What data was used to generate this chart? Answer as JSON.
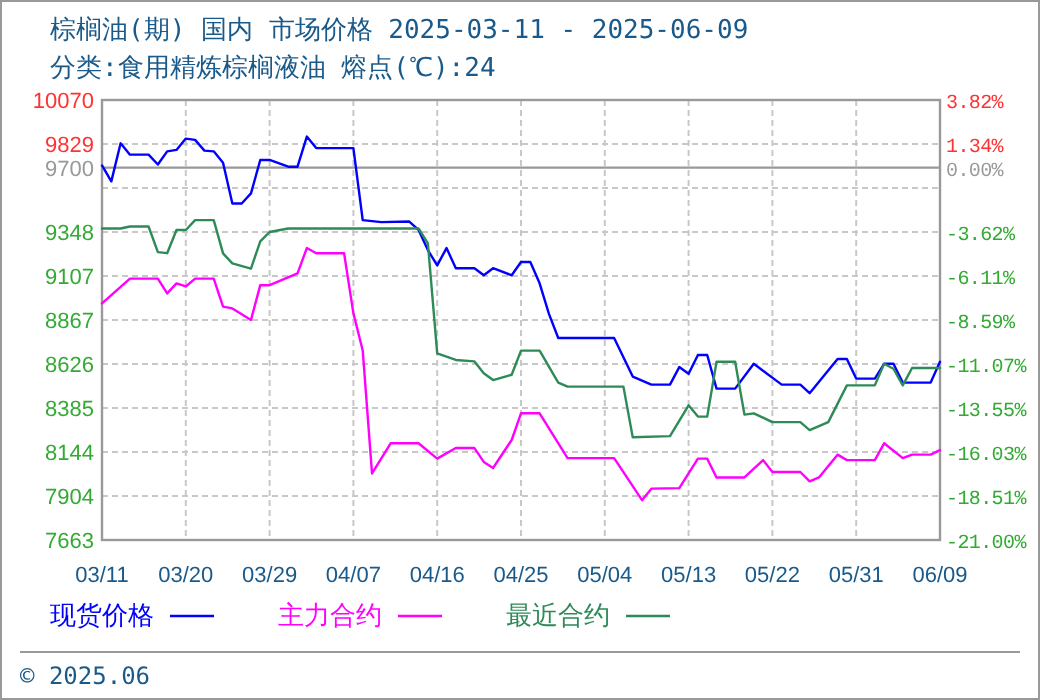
{
  "chart_data": {
    "type": "line",
    "title": "棕榈油(期) 国内 市场价格  2025-03-11 - 2025-06-09",
    "subtitle": "分类:食用精炼棕榈液油 熔点(℃):24",
    "xlim": [
      "2025-03-11",
      "2025-06-09"
    ],
    "xticks": [
      {
        "value": "2025-03-11",
        "label": "03/11"
      },
      {
        "value": "2025-03-20",
        "label": "03/20"
      },
      {
        "value": "2025-03-29",
        "label": "03/29"
      },
      {
        "value": "2025-04-07",
        "label": "04/07"
      },
      {
        "value": "2025-04-16",
        "label": "04/16"
      },
      {
        "value": "2025-04-25",
        "label": "04/25"
      },
      {
        "value": "2025-05-04",
        "label": "05/04"
      },
      {
        "value": "2025-05-13",
        "label": "05/13"
      },
      {
        "value": "2025-05-22",
        "label": "05/22"
      },
      {
        "value": "2025-05-31",
        "label": "05/31"
      },
      {
        "value": "2025-06-09",
        "label": "06/09"
      }
    ],
    "ylim": [
      7663,
      10070
    ],
    "yticks": [
      10070,
      9829,
      9700,
      {
        "value": 9588,
        "label": null
      },
      9348,
      9107,
      8867,
      8626,
      8385,
      8144,
      7904,
      7663
    ],
    "y2lim": [
      -21.0,
      3.82
    ],
    "y2ticks": [
      {
        "value": 3.82,
        "label": "3.82%"
      },
      {
        "value": 1.34,
        "label": "1.34%"
      },
      {
        "value": 0,
        "label": "0.00%"
      },
      {
        "value": -3.62,
        "label": "-3.62%"
      },
      {
        "value": -6.11,
        "label": "-6.11%"
      },
      {
        "value": -8.59,
        "label": "-8.59%"
      },
      {
        "value": -11.07,
        "label": "-11.07%"
      },
      {
        "value": -13.55,
        "label": "-13.55%"
      },
      {
        "value": -16.03,
        "label": "-16.03%"
      },
      {
        "value": -18.51,
        "label": "-18.51%"
      },
      {
        "value": -21.0,
        "label": "-21.00%"
      }
    ],
    "ref_lines": [
      {
        "axis": "y",
        "value": 9700,
        "color": "#999999"
      }
    ],
    "grid": true,
    "legend": "bottom",
    "line_style": "solid",
    "marker": "none",
    "annotations": [
      "© 2025.06"
    ],
    "series": [
      {
        "name": "现货价格",
        "color": "#0000ff",
        "x": [
          "2025-03-11",
          "2025-03-12",
          "2025-03-13",
          "2025-03-14",
          "2025-03-16",
          "2025-03-17",
          "2025-03-18",
          "2025-03-19",
          "2025-03-20",
          "2025-03-21",
          "2025-03-22",
          "2025-03-23",
          "2025-03-24",
          "2025-03-25",
          "2025-03-26",
          "2025-03-27",
          "2025-03-28",
          "2025-03-29",
          "2025-03-31",
          "2025-04-01",
          "2025-04-02",
          "2025-04-03",
          "2025-04-07",
          "2025-04-08",
          "2025-04-10",
          "2025-04-13",
          "2025-04-14",
          "2025-04-15",
          "2025-04-16",
          "2025-04-17",
          "2025-04-18",
          "2025-04-20",
          "2025-04-21",
          "2025-04-22",
          "2025-04-24",
          "2025-04-25",
          "2025-04-26",
          "2025-04-27",
          "2025-04-28",
          "2025-04-29",
          "2025-05-05",
          "2025-05-07",
          "2025-05-09",
          "2025-05-11",
          "2025-05-12",
          "2025-05-13",
          "2025-05-14",
          "2025-05-15",
          "2025-05-16",
          "2025-05-18",
          "2025-05-20",
          "2025-05-23",
          "2025-05-25",
          "2025-05-26",
          "2025-05-29",
          "2025-05-30",
          "2025-05-31",
          "2025-06-02",
          "2025-06-03",
          "2025-06-04",
          "2025-06-05",
          "2025-06-08",
          "2025-06-09"
        ],
        "values": [
          9712,
          9625,
          9833,
          9771,
          9771,
          9717,
          9789,
          9797,
          9859,
          9852,
          9793,
          9789,
          9727,
          9504,
          9504,
          9559,
          9742,
          9742,
          9705,
          9705,
          9870,
          9807,
          9807,
          9413,
          9402,
          9405,
          9359,
          9249,
          9165,
          9260,
          9150,
          9150,
          9111,
          9150,
          9111,
          9184,
          9184,
          9067,
          8900,
          8768,
          8768,
          8557,
          8513,
          8513,
          8609,
          8572,
          8675,
          8675,
          8491,
          8491,
          8627,
          8513,
          8513,
          8466,
          8653,
          8653,
          8546,
          8546,
          8627,
          8627,
          8524,
          8524,
          8638
        ]
      },
      {
        "name": "主力合约",
        "color": "#ff00ff",
        "x": [
          "2025-03-11",
          "2025-03-14",
          "2025-03-17",
          "2025-03-18",
          "2025-03-19",
          "2025-03-20",
          "2025-03-21",
          "2025-03-23",
          "2025-03-24",
          "2025-03-25",
          "2025-03-27",
          "2025-03-28",
          "2025-03-29",
          "2025-04-01",
          "2025-04-02",
          "2025-04-03",
          "2025-04-06",
          "2025-04-07",
          "2025-04-08",
          "2025-04-09",
          "2025-04-11",
          "2025-04-14",
          "2025-04-16",
          "2025-04-18",
          "2025-04-20",
          "2025-04-21",
          "2025-04-22",
          "2025-04-24",
          "2025-04-25",
          "2025-04-27",
          "2025-04-30",
          "2025-05-05",
          "2025-05-08",
          "2025-05-09",
          "2025-05-12",
          "2025-05-14",
          "2025-05-15",
          "2025-05-16",
          "2025-05-19",
          "2025-05-21",
          "2025-05-22",
          "2025-05-25",
          "2025-05-26",
          "2025-05-27",
          "2025-05-29",
          "2025-05-30",
          "2025-06-02",
          "2025-06-03",
          "2025-06-05",
          "2025-06-06",
          "2025-06-08",
          "2025-06-09"
        ],
        "values": [
          8957,
          9093,
          9093,
          9012,
          9067,
          9050,
          9093,
          9093,
          8940,
          8930,
          8867,
          9057,
          9057,
          9122,
          9260,
          9232,
          9232,
          8903,
          8700,
          8027,
          8192,
          8192,
          8108,
          8166,
          8166,
          8090,
          8057,
          8210,
          8356,
          8356,
          8111,
          8111,
          7881,
          7944,
          7947,
          8108,
          8108,
          8005,
          8005,
          8100,
          8035,
          8035,
          7984,
          8005,
          8130,
          8100,
          8100,
          8192,
          8111,
          8130,
          8130,
          8155
        ]
      },
      {
        "name": "最近合约",
        "color": "#2e8b57",
        "x": [
          "2025-03-11",
          "2025-03-13",
          "2025-03-14",
          "2025-03-16",
          "2025-03-17",
          "2025-03-18",
          "2025-03-19",
          "2025-03-20",
          "2025-03-21",
          "2025-03-23",
          "2025-03-24",
          "2025-03-25",
          "2025-03-27",
          "2025-03-28",
          "2025-03-29",
          "2025-03-31",
          "2025-04-14",
          "2025-04-15",
          "2025-04-16",
          "2025-04-18",
          "2025-04-20",
          "2025-04-21",
          "2025-04-22",
          "2025-04-24",
          "2025-04-25",
          "2025-04-27",
          "2025-04-29",
          "2025-04-30",
          "2025-05-06",
          "2025-05-07",
          "2025-05-11",
          "2025-05-13",
          "2025-05-14",
          "2025-05-15",
          "2025-05-16",
          "2025-05-18",
          "2025-05-19",
          "2025-05-20",
          "2025-05-22",
          "2025-05-25",
          "2025-05-26",
          "2025-05-28",
          "2025-05-30",
          "2025-06-02",
          "2025-06-03",
          "2025-06-04",
          "2025-06-05",
          "2025-06-06",
          "2025-06-09"
        ],
        "values": [
          9367,
          9367,
          9378,
          9378,
          9238,
          9232,
          9359,
          9359,
          9413,
          9413,
          9231,
          9176,
          9148,
          9297,
          9348,
          9367,
          9367,
          9286,
          8684,
          8648,
          8640,
          8575,
          8538,
          8567,
          8699,
          8699,
          8524,
          8502,
          8502,
          8225,
          8231,
          8400,
          8338,
          8338,
          8638,
          8638,
          8349,
          8356,
          8308,
          8308,
          8264,
          8308,
          8509,
          8509,
          8627,
          8600,
          8509,
          8604,
          8604
        ]
      }
    ]
  }
}
